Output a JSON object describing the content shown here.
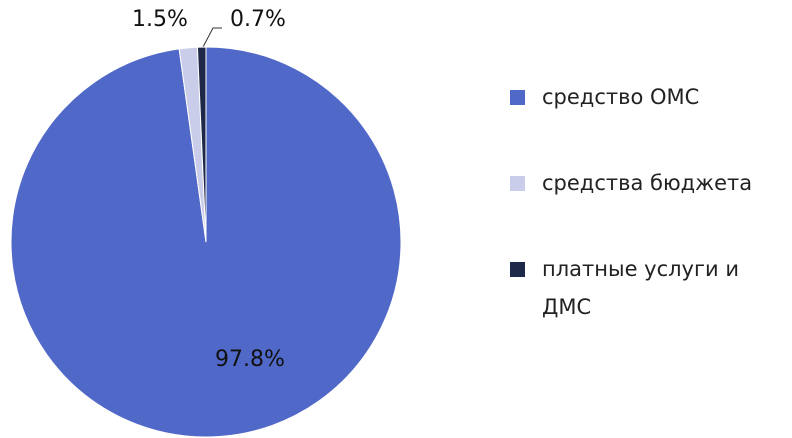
{
  "chart_data": {
    "type": "pie",
    "categories": [
      "средство ОМС",
      "средства бюджета",
      "платные услуги и ДМС"
    ],
    "values": [
      97.8,
      1.5,
      0.7
    ],
    "value_labels": [
      "97.8%",
      "1.5%",
      "0.7%"
    ],
    "colors": [
      "#5068c8",
      "#c9cde9",
      "#1e2848"
    ],
    "legend": "right"
  }
}
